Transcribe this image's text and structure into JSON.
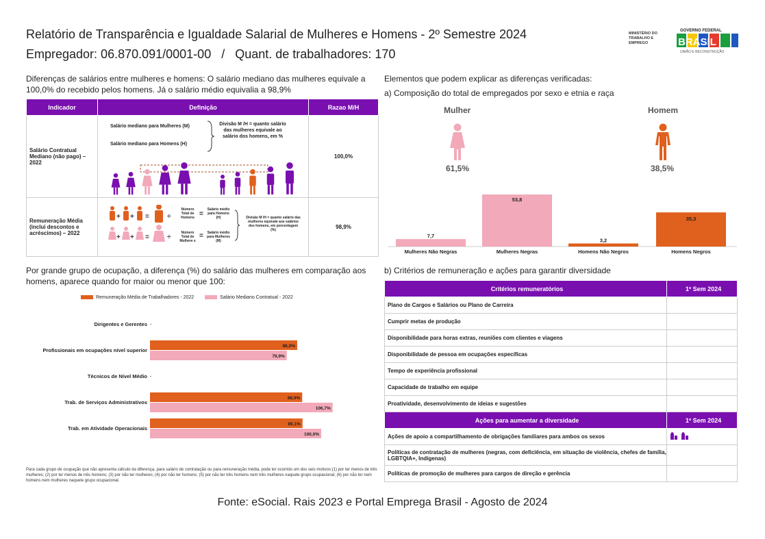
{
  "header": {
    "title": "Relatório de Transparência e Igualdade Salarial de Mulheres e Homens - 2º Semestre 2024",
    "employer_line": "Empregador: 06.870.091/0001-00   /   Quant. de trabalhadores: 170",
    "gov": {
      "ministry": "MINISTÉRIO DO TRABALHO E EMPREGO",
      "gov_federal": "GOVERNO FEDERAL",
      "brasil": "BRASIL",
      "slogan": "UNIÃO E RECONSTRUÇÃO"
    }
  },
  "left": {
    "intro": "Diferenças de salários entre mulheres e homens: O salário mediano das mulheres equivale a 100,0% do recebido pelos homens. Já o salário médio equivalia a 98,9%",
    "table": {
      "headers": [
        "Indicador",
        "Definição",
        "Razao M/H"
      ],
      "row1": {
        "indicator": "Salário Contratual Mediano (não pago) – 2022",
        "def_a": "Salário mediano para Mulheres (M)",
        "def_b": "Salário mediano para Homens (H)",
        "def_c": "Divisão M /H = quanto salário das mulheres equivale ao salário dos homens, em %",
        "value": "100,0%"
      },
      "row2": {
        "indicator": "Remuneração Média (inclui descontos e acréscimos) – 2022",
        "men_total": "Número Total de Homens",
        "men_avg": "Salário médio para Homens (H)",
        "women_total": "Número Total de Mulhere s",
        "women_avg": "Salário médio para Mulheres (M)",
        "div": "Divisão M /H = quanto salário das mulheres equivale aos salários dos homens, em porcentagem (%)",
        "value": "98,9%"
      }
    },
    "occupation_intro": "Por grande grupo de ocupação, a diferença (%) do salário das mulheres em comparação aos homens, aparece quando for maior ou menor que 100:",
    "footnote": "Para cada grupo de ocupação que não apresenta cálculo da diferença, para salário de contratação ou para remuneração média, pode ter ocorrido um dos seis motivos:(1) por ter menos de três mulheres; (2) por ter menos de três homens; (3) por não ter mulheres; (4) por não ter homens; (5) por não ter três homens nem três mulheres naquele grupo ocupacional; (6) por não ter nem homens nem mulheres naquele grupo ocupacional."
  },
  "chart_data": [
    {
      "type": "bar",
      "orientation": "horizontal",
      "categories": [
        "Dirigentes e Gerentes",
        "Profissionais em ocupações nível superior",
        "Técnicos de Nível Médio",
        "Trab. de Serviços Administrativos",
        "Trab. em Atividade Operacionais"
      ],
      "series": [
        {
          "name": "Remuneração Média de Trabalhadores - 2022",
          "color": "#e0601e",
          "values": [
            null,
            86.0,
            null,
            88.9,
            89.1
          ],
          "labels": [
            "",
            "86,0%",
            "",
            "88,9%",
            "89,1%"
          ]
        },
        {
          "name": "Salário Mediano Contratual - 2022",
          "color": "#f2a9b9",
          "values": [
            null,
            79.9,
            null,
            106.7,
            100.0
          ],
          "labels": [
            "",
            "79,9%",
            "",
            "106,7%",
            "100,0%"
          ]
        }
      ],
      "xlim": [
        0,
        120
      ],
      "legend": "top"
    },
    {
      "type": "bar",
      "categories": [
        "Mulheres Não Negras",
        "Mulheres Negras",
        "Homens Não Negros",
        "Homens Negros"
      ],
      "values": [
        7.7,
        53.8,
        3.2,
        35.3
      ],
      "labels": [
        "7,7",
        "53,8",
        "3,2",
        "35,3"
      ],
      "colors": [
        "#f2a9b9",
        "#f2a9b9",
        "#e0601e",
        "#e0601e"
      ],
      "ylim": [
        0,
        60
      ]
    }
  ],
  "right": {
    "elements_title": "Elementos que podem explicar as diferenças verificadas:",
    "comp_title": "a) Composição do total de empregados por sexo e etnia e raça",
    "woman_label": "Mulher",
    "woman_pct": "61,5%",
    "man_label": "Homem",
    "man_pct": "38,5%",
    "criteria_title": "b) Critérios de remuneração e ações para garantir diversidade",
    "criteria_header": [
      "Critérios remuneratórios",
      "1º Sem 2024"
    ],
    "criteria": [
      "Plano de Cargos e Salários ou Plano de Carreira",
      "Cumprir metas de produção",
      "Disponibilidade para horas extras, reuniões com clientes e viagens",
      "Disponibilidade de pessoa em ocupações específicas",
      "Tempo de experiência profissional",
      "Capacidade de trabalho em equipe",
      "Proatividade, desenvolvimento de ideias e sugestões"
    ],
    "actions_header": [
      "Ações para aumentar a diversidade",
      "1º Sem 2024"
    ],
    "actions": [
      "Ações de apoio a compartilhamento de obrigações familiares para ambos os sexos",
      "Políticas de contratação de mulheres (negras, com deficiência, em situação de violência, chefes de família, LGBTQIA+, Indígenas)",
      "Políticas de promoção de mulheres para cargos de direção e gerência"
    ]
  },
  "footer": "Fonte: eSocial. Rais 2023 e Portal Emprega Brasil - Agosto de 2024"
}
